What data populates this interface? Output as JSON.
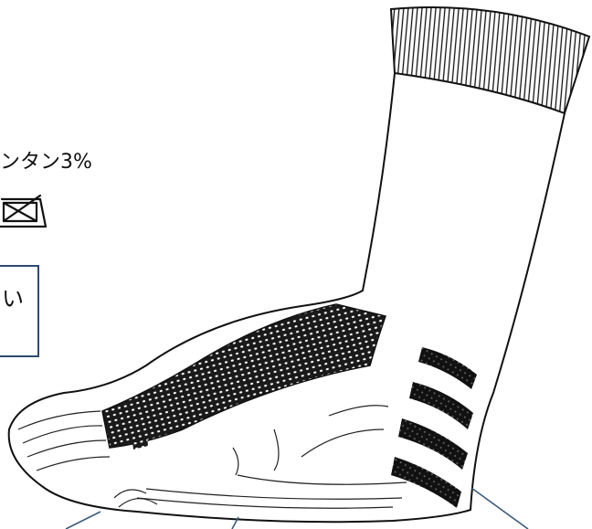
{
  "texts": {
    "composition": "ンタン3%",
    "box_text": "い"
  }
}
